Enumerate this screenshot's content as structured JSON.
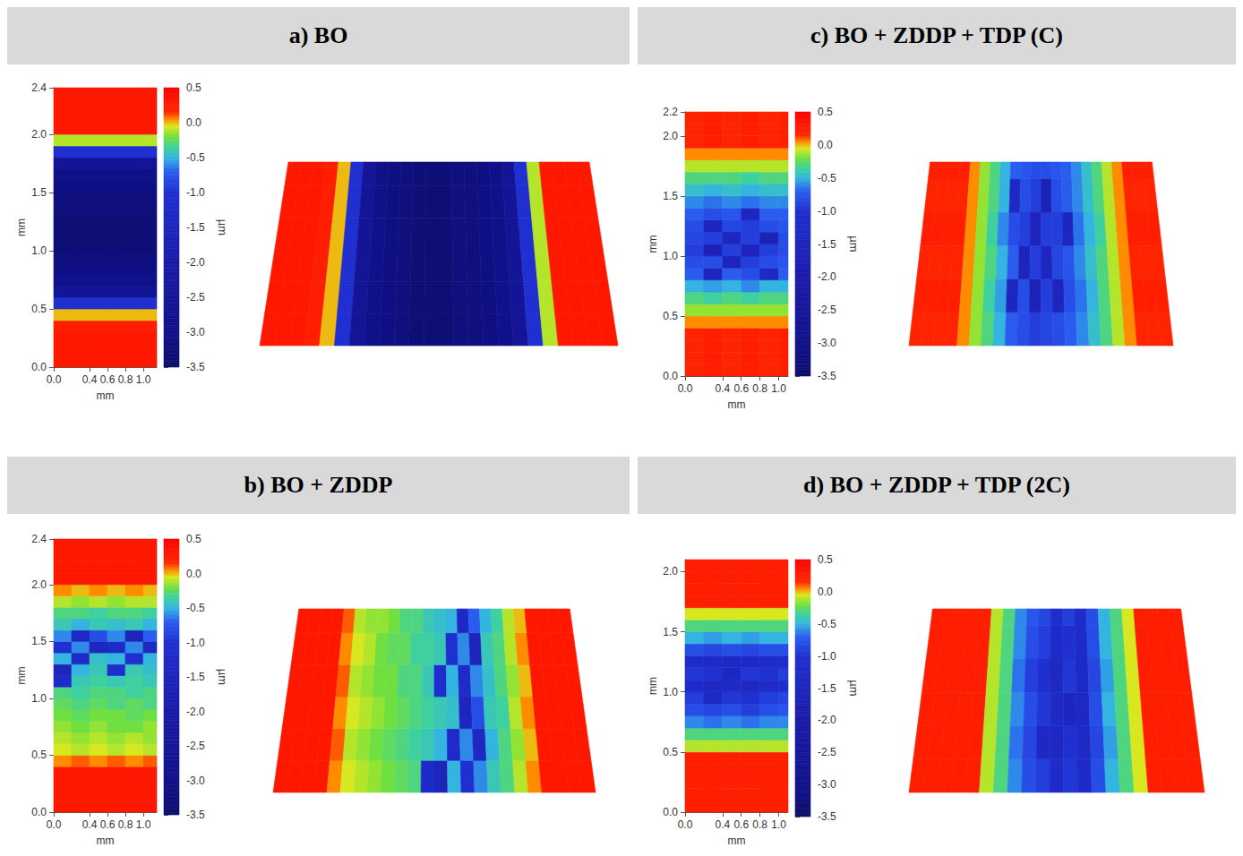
{
  "chart_data": [
    {
      "type": "heatmap",
      "title": "a) BO",
      "x_label": "mm",
      "y_label": "mm",
      "xlim": [
        0,
        1.15
      ],
      "xticks": [
        {
          "value": 0,
          "label": "0.0"
        },
        0.4,
        0.6,
        0.8,
        {
          "value": 1,
          "label": "1.0"
        }
      ],
      "ylim": [
        0,
        2.4
      ],
      "yticks": [
        {
          "value": 0,
          "label": "0.0"
        },
        0.5,
        {
          "value": 1,
          "label": "1.0"
        },
        1.5,
        {
          "value": 2,
          "label": "2.0"
        },
        2.4
      ],
      "x": [
        0.1,
        0.3,
        0.5,
        0.7,
        0.9,
        1.1
      ],
      "y": [
        0.05,
        0.15,
        0.25,
        0.35,
        0.45,
        0.55,
        0.65,
        0.75,
        0.85,
        0.95,
        1.05,
        1.15,
        1.25,
        1.35,
        1.45,
        1.55,
        1.65,
        1.75,
        1.85,
        1.95,
        2.05,
        2.15,
        2.25,
        2.35
      ],
      "z": [
        [
          0.3,
          0.3,
          0.3,
          0.3,
          0.3,
          0.3
        ],
        [
          0.3,
          0.3,
          0.3,
          0.3,
          0.3,
          0.3
        ],
        [
          0.3,
          0.3,
          0.3,
          0.3,
          0.3,
          0.3
        ],
        [
          0.25,
          0.25,
          0.25,
          0.25,
          0.25,
          0.25
        ],
        [
          0.0,
          0.0,
          0.0,
          0.0,
          0.0,
          0.0
        ],
        [
          -1.0,
          -1.0,
          -1.0,
          -1.0,
          -1.0,
          -1.0
        ],
        [
          -2.6,
          -2.6,
          -2.6,
          -2.6,
          -2.6,
          -2.6
        ],
        [
          -3.0,
          -3.0,
          -3.0,
          -3.0,
          -3.0,
          -3.0
        ],
        [
          -3.1,
          -3.1,
          -3.1,
          -3.1,
          -3.1,
          -3.1
        ],
        [
          -3.2,
          -3.2,
          -3.2,
          -3.2,
          -3.2,
          -3.2
        ],
        [
          -3.3,
          -3.3,
          -3.3,
          -3.3,
          -3.3,
          -3.3
        ],
        [
          -3.3,
          -3.3,
          -3.3,
          -3.3,
          -3.3,
          -3.3
        ],
        [
          -3.3,
          -3.3,
          -3.3,
          -3.3,
          -3.3,
          -3.3
        ],
        [
          -3.2,
          -3.2,
          -3.2,
          -3.2,
          -3.2,
          -3.2
        ],
        [
          -3.2,
          -3.2,
          -3.2,
          -3.2,
          -3.2,
          -3.2
        ],
        [
          -3.1,
          -3.1,
          -3.1,
          -3.1,
          -3.1,
          -3.1
        ],
        [
          -3.0,
          -3.0,
          -3.0,
          -3.0,
          -3.0,
          -3.0
        ],
        [
          -2.6,
          -2.6,
          -2.6,
          -2.6,
          -2.6,
          -2.6
        ],
        [
          -1.0,
          -1.0,
          -1.0,
          -1.0,
          -1.0,
          -1.0
        ],
        [
          -0.1,
          -0.1,
          -0.1,
          -0.1,
          -0.1,
          -0.1
        ],
        [
          0.3,
          0.3,
          0.3,
          0.3,
          0.3,
          0.3
        ],
        [
          0.3,
          0.3,
          0.3,
          0.3,
          0.3,
          0.3
        ],
        [
          0.3,
          0.3,
          0.3,
          0.3,
          0.3,
          0.3
        ],
        [
          0.3,
          0.3,
          0.3,
          0.3,
          0.3,
          0.3
        ]
      ],
      "colorbar": {
        "label": "µm",
        "lim": [
          -3.5,
          0.5
        ],
        "ticks": [
          0.5,
          {
            "value": 0,
            "label": "0.0"
          },
          -0.5,
          {
            "value": -1,
            "label": "-1.0"
          },
          -1.5,
          {
            "value": -2,
            "label": "-2.0"
          },
          -2.5,
          {
            "value": -3,
            "label": "-3.0"
          },
          -3.5
        ]
      }
    },
    {
      "type": "heatmap",
      "title": "b) BO + ZDDP",
      "x_label": "mm",
      "y_label": "mm",
      "xlim": [
        0,
        1.15
      ],
      "xticks": [
        {
          "value": 0,
          "label": "0.0"
        },
        0.4,
        0.6,
        0.8,
        {
          "value": 1,
          "label": "1.0"
        }
      ],
      "ylim": [
        0,
        2.4
      ],
      "yticks": [
        {
          "value": 0,
          "label": "0.0"
        },
        0.5,
        {
          "value": 1,
          "label": "1.0"
        },
        1.5,
        {
          "value": 2,
          "label": "2.0"
        },
        2.4
      ],
      "x": [
        0.1,
        0.3,
        0.5,
        0.7,
        0.9,
        1.1
      ],
      "y": [
        0.05,
        0.15,
        0.25,
        0.35,
        0.45,
        0.55,
        0.65,
        0.75,
        0.85,
        0.95,
        1.05,
        1.15,
        1.25,
        1.35,
        1.45,
        1.55,
        1.65,
        1.75,
        1.85,
        1.95,
        2.05,
        2.15,
        2.25,
        2.35
      ],
      "z": [
        [
          0.3,
          0.3,
          0.3,
          0.3,
          0.3,
          0.3
        ],
        [
          0.3,
          0.3,
          0.3,
          0.3,
          0.3,
          0.3
        ],
        [
          0.3,
          0.3,
          0.3,
          0.3,
          0.3,
          0.3
        ],
        [
          0.3,
          0.3,
          0.3,
          0.3,
          0.3,
          0.3
        ],
        [
          0.05,
          0.1,
          0.05,
          0.1,
          0.05,
          0.1
        ],
        [
          -0.05,
          -0.1,
          -0.05,
          -0.1,
          -0.05,
          -0.1
        ],
        [
          -0.1,
          -0.15,
          -0.1,
          -0.15,
          -0.1,
          -0.15
        ],
        [
          -0.15,
          -0.2,
          -0.15,
          -0.2,
          -0.2,
          -0.15
        ],
        [
          -0.2,
          -0.25,
          -0.2,
          -0.2,
          -0.25,
          -0.2
        ],
        [
          -0.25,
          -0.3,
          -0.25,
          -0.3,
          -0.25,
          -0.3
        ],
        [
          -0.3,
          -0.35,
          -0.3,
          -0.3,
          -0.35,
          -0.3
        ],
        [
          -1.2,
          -0.4,
          -0.35,
          -0.4,
          -0.35,
          -0.4
        ],
        [
          -1.5,
          -0.5,
          -0.4,
          -1.1,
          -0.4,
          -0.45
        ],
        [
          -0.5,
          -1.2,
          -0.45,
          -0.5,
          -1.0,
          -0.5
        ],
        [
          -1.0,
          -0.6,
          -1.4,
          -1.2,
          -0.6,
          -1.3
        ],
        [
          -0.6,
          -1.3,
          -0.8,
          -0.6,
          -1.5,
          -0.7
        ],
        [
          -0.4,
          -0.5,
          -0.4,
          -0.45,
          -0.4,
          -0.5
        ],
        [
          -0.3,
          -0.3,
          -0.35,
          -0.3,
          -0.3,
          -0.35
        ],
        [
          -0.1,
          -0.15,
          -0.1,
          -0.15,
          -0.1,
          -0.1
        ],
        [
          0.05,
          0.0,
          0.05,
          0.0,
          0.05,
          0.0
        ],
        [
          0.3,
          0.3,
          0.3,
          0.3,
          0.3,
          0.3
        ],
        [
          0.3,
          0.3,
          0.3,
          0.3,
          0.3,
          0.3
        ],
        [
          0.3,
          0.3,
          0.3,
          0.3,
          0.3,
          0.3
        ],
        [
          0.3,
          0.3,
          0.3,
          0.3,
          0.3,
          0.3
        ]
      ],
      "colorbar": {
        "label": "µm",
        "lim": [
          -3.5,
          0.5
        ],
        "ticks": [
          0.5,
          {
            "value": 0,
            "label": "0.0"
          },
          -0.5,
          {
            "value": -1,
            "label": "-1.0"
          },
          -1.5,
          {
            "value": -2,
            "label": "-2.0"
          },
          -2.5,
          {
            "value": -3,
            "label": "-3.0"
          },
          -3.5
        ]
      }
    },
    {
      "type": "heatmap",
      "title": "c) BO + ZDDP + TDP (C)",
      "x_label": "mm",
      "y_label": "mm",
      "xlim": [
        0,
        1.1
      ],
      "xticks": [
        {
          "value": 0,
          "label": "0.0"
        },
        0.4,
        0.6,
        0.8,
        {
          "value": 1,
          "label": "1.0"
        }
      ],
      "ylim": [
        0,
        2.2
      ],
      "yticks": [
        {
          "value": 0,
          "label": "0.0"
        },
        0.5,
        {
          "value": 1,
          "label": "1.0"
        },
        1.5,
        {
          "value": 2,
          "label": "2.0"
        },
        2.2
      ],
      "x": [
        0.1,
        0.3,
        0.5,
        0.7,
        0.9,
        1.1
      ],
      "y": [
        0.05,
        0.15,
        0.25,
        0.35,
        0.45,
        0.55,
        0.65,
        0.75,
        0.85,
        0.95,
        1.05,
        1.15,
        1.25,
        1.35,
        1.45,
        1.55,
        1.65,
        1.75,
        1.85,
        1.95,
        2.05,
        2.15
      ],
      "z": [
        [
          0.2,
          0.25,
          0.2,
          0.25,
          0.2,
          0.25
        ],
        [
          0.2,
          0.25,
          0.2,
          0.25,
          0.2,
          0.25
        ],
        [
          0.2,
          0.25,
          0.2,
          0.25,
          0.2,
          0.25
        ],
        [
          0.2,
          0.25,
          0.2,
          0.25,
          0.2,
          0.25
        ],
        [
          0.05,
          0.05,
          0.05,
          0.05,
          0.05,
          0.05
        ],
        [
          -0.15,
          -0.15,
          -0.15,
          -0.15,
          -0.15,
          -0.15
        ],
        [
          -0.3,
          -0.35,
          -0.3,
          -0.35,
          -0.3,
          -0.3
        ],
        [
          -0.5,
          -0.55,
          -0.5,
          -0.6,
          -0.5,
          -0.5
        ],
        [
          -0.7,
          -1.4,
          -0.7,
          -0.8,
          -1.3,
          -0.7
        ],
        [
          -0.8,
          -0.8,
          -1.5,
          -0.9,
          -0.8,
          -0.75
        ],
        [
          -0.9,
          -1.6,
          -0.9,
          -1.5,
          -0.9,
          -0.8
        ],
        [
          -0.85,
          -0.9,
          -1.4,
          -0.9,
          -1.6,
          -0.8
        ],
        [
          -0.8,
          -1.5,
          -0.85,
          -0.9,
          -0.8,
          -0.75
        ],
        [
          -0.7,
          -0.8,
          -0.75,
          -1.4,
          -0.7,
          -0.7
        ],
        [
          -0.6,
          -0.65,
          -0.6,
          -0.65,
          -0.6,
          -0.6
        ],
        [
          -0.45,
          -0.5,
          -0.45,
          -0.5,
          -0.45,
          -0.45
        ],
        [
          -0.3,
          -0.3,
          -0.3,
          -0.35,
          -0.3,
          -0.3
        ],
        [
          -0.1,
          -0.1,
          -0.1,
          -0.1,
          -0.1,
          -0.1
        ],
        [
          0.05,
          0.05,
          0.05,
          0.05,
          0.05,
          0.05
        ],
        [
          0.2,
          0.25,
          0.2,
          0.25,
          0.2,
          0.25
        ],
        [
          0.2,
          0.25,
          0.2,
          0.25,
          0.2,
          0.25
        ],
        [
          0.2,
          0.25,
          0.2,
          0.25,
          0.2,
          0.25
        ]
      ],
      "colorbar": {
        "label": "µm",
        "lim": [
          -3.5,
          0.5
        ],
        "ticks": [
          0.5,
          {
            "value": 0,
            "label": "0.0"
          },
          -0.5,
          {
            "value": -1,
            "label": "-1.0"
          },
          -1.5,
          {
            "value": -2,
            "label": "-2.0"
          },
          -2.5,
          {
            "value": -3,
            "label": "-3.0"
          },
          -3.5
        ]
      }
    },
    {
      "type": "heatmap",
      "title": "d) BO + ZDDP + TDP (2C)",
      "x_label": "mm",
      "y_label": "mm",
      "xlim": [
        0,
        1.1
      ],
      "xticks": [
        {
          "value": 0,
          "label": "0.0"
        },
        0.4,
        0.6,
        0.8,
        {
          "value": 1,
          "label": "1.0"
        }
      ],
      "ylim": [
        0,
        2.1
      ],
      "yticks": [
        {
          "value": 0,
          "label": "0.0"
        },
        0.5,
        {
          "value": 1,
          "label": "1.0"
        },
        1.5,
        {
          "value": 2,
          "label": "2.0"
        }
      ],
      "x": [
        0.1,
        0.3,
        0.5,
        0.7,
        0.9,
        1.1
      ],
      "y": [
        0.05,
        0.15,
        0.25,
        0.35,
        0.45,
        0.55,
        0.65,
        0.75,
        0.85,
        0.95,
        1.05,
        1.15,
        1.25,
        1.35,
        1.45,
        1.55,
        1.65,
        1.75,
        1.85,
        1.95,
        2.05
      ],
      "z": [
        [
          0.25,
          0.25,
          0.25,
          0.25,
          0.25,
          0.25
        ],
        [
          0.25,
          0.25,
          0.25,
          0.25,
          0.25,
          0.25
        ],
        [
          0.25,
          0.25,
          0.25,
          0.25,
          0.25,
          0.25
        ],
        [
          0.25,
          0.25,
          0.25,
          0.25,
          0.25,
          0.25
        ],
        [
          0.25,
          0.25,
          0.25,
          0.25,
          0.25,
          0.25
        ],
        [
          -0.1,
          -0.1,
          -0.1,
          -0.1,
          -0.1,
          -0.1
        ],
        [
          -0.3,
          -0.3,
          -0.3,
          -0.3,
          -0.3,
          -0.3
        ],
        [
          -0.6,
          -0.65,
          -0.6,
          -0.65,
          -0.6,
          -0.6
        ],
        [
          -0.8,
          -0.85,
          -0.8,
          -0.9,
          -0.8,
          -0.75
        ],
        [
          -0.9,
          -1.3,
          -0.95,
          -1.0,
          -0.9,
          -0.85
        ],
        [
          -1.2,
          -1.3,
          -1.25,
          -1.3,
          -1.2,
          -1.1
        ],
        [
          -0.95,
          -1.0,
          -1.4,
          -0.95,
          -1.0,
          -0.9
        ],
        [
          -1.2,
          -1.25,
          -1.3,
          -1.25,
          -1.2,
          -1.15
        ],
        [
          -0.8,
          -0.85,
          -0.8,
          -0.85,
          -0.8,
          -0.8
        ],
        [
          -0.5,
          -0.55,
          -0.5,
          -0.55,
          -0.5,
          -0.5
        ],
        [
          -0.3,
          -0.3,
          -0.3,
          -0.3,
          -0.3,
          -0.3
        ],
        [
          -0.05,
          -0.05,
          -0.05,
          -0.05,
          -0.05,
          -0.05
        ],
        [
          0.25,
          0.25,
          0.25,
          0.25,
          0.25,
          0.25
        ],
        [
          0.25,
          0.25,
          0.25,
          0.25,
          0.25,
          0.25
        ],
        [
          0.25,
          0.25,
          0.25,
          0.25,
          0.25,
          0.25
        ],
        [
          0.25,
          0.25,
          0.25,
          0.25,
          0.25,
          0.25
        ]
      ],
      "colorbar": {
        "label": "µm",
        "lim": [
          -3.5,
          0.5
        ],
        "ticks": [
          0.5,
          {
            "value": 0,
            "label": "0.0"
          },
          -0.5,
          {
            "value": -1,
            "label": "-1.0"
          },
          -1.5,
          {
            "value": -2,
            "label": "-2.0"
          },
          -2.5,
          {
            "value": -3,
            "label": "-3.0"
          },
          -3.5
        ]
      }
    }
  ]
}
